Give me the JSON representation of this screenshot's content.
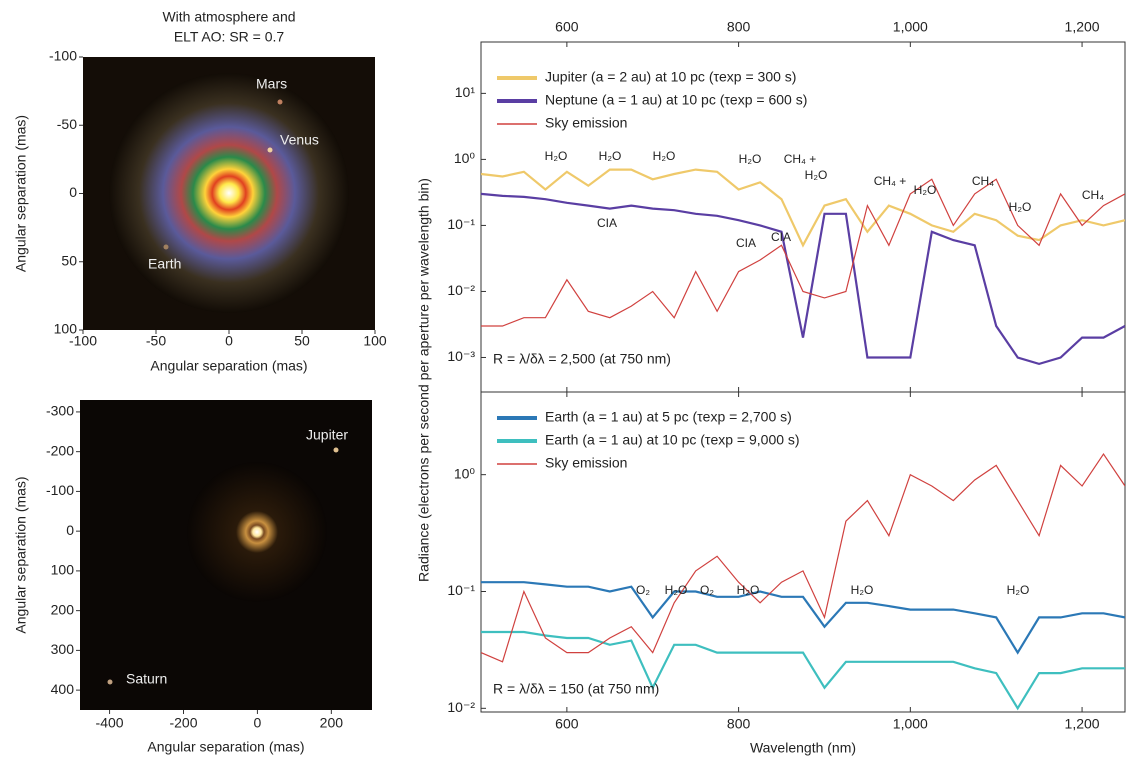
{
  "chart_data": [
    {
      "type": "image",
      "title": [
        "With atmosphere and",
        "ELT AO: SR = 0.7"
      ],
      "xlabel": "Angular separation (mas)",
      "ylabel": "Angular separation (mas)",
      "xlim": [
        -100,
        100
      ],
      "ylim": [
        -100,
        100
      ],
      "y_inverted": true,
      "xticks": [
        -100,
        -50,
        0,
        50,
        100
      ],
      "yticks": [
        -100,
        -50,
        0,
        50,
        100
      ],
      "annotations": [
        "Mars",
        "Venus",
        "Earth"
      ]
    },
    {
      "type": "image",
      "xlabel": "Angular separation (mas)",
      "ylabel": "Angular separation (mas)",
      "xlim": [
        -480,
        310
      ],
      "ylim": [
        -330,
        450
      ],
      "y_inverted": true,
      "xticks": [
        -400,
        -200,
        0,
        200
      ],
      "yticks": [
        -300,
        -200,
        -100,
        0,
        100,
        200,
        300,
        400
      ],
      "annotations": [
        "Jupiter",
        "Saturn"
      ]
    },
    {
      "type": "line",
      "ylabel": "Radiance (electrons per second per aperture per wavelength bin)",
      "log_y": true,
      "xlim": [
        500,
        1250
      ],
      "ylim": [
        0.0003,
        60
      ],
      "xticks": [
        600,
        800,
        {
          "value": 1000,
          "label": "1,000"
        },
        {
          "value": 1200,
          "label": "1,200"
        }
      ],
      "yticks": [
        {
          "value": 0.001,
          "label": "10⁻³"
        },
        {
          "value": 0.01,
          "label": "10⁻²"
        },
        {
          "value": 0.1,
          "label": "10⁻¹"
        },
        {
          "value": 1,
          "label": "10⁰"
        },
        {
          "value": 10,
          "label": "10¹"
        }
      ],
      "x": [
        500,
        525,
        550,
        575,
        600,
        625,
        650,
        675,
        700,
        725,
        750,
        775,
        800,
        825,
        850,
        875,
        900,
        925,
        950,
        975,
        1000,
        1025,
        1050,
        1075,
        1100,
        1125,
        1150,
        1175,
        1200,
        1225,
        1250
      ],
      "series": [
        {
          "name": "Jupiter (a = 2 au) at 10 pc (τexp = 300 s)",
          "color": "#efc96a",
          "values": [
            0.6,
            0.55,
            0.65,
            0.35,
            0.65,
            0.4,
            0.7,
            0.7,
            0.5,
            0.6,
            0.7,
            0.65,
            0.35,
            0.45,
            0.25,
            0.05,
            0.2,
            0.25,
            0.08,
            0.2,
            0.15,
            0.1,
            0.08,
            0.15,
            0.12,
            0.07,
            0.06,
            0.1,
            0.12,
            0.1,
            0.12
          ]
        },
        {
          "name": "Neptune (a = 1 au) at 10 pc (τexp = 600 s)",
          "color": "#5a3ea3",
          "values": [
            0.3,
            0.28,
            0.27,
            0.25,
            0.22,
            0.2,
            0.18,
            0.2,
            0.18,
            0.17,
            0.15,
            0.14,
            0.12,
            0.1,
            0.08,
            0.002,
            0.15,
            0.15,
            0.001,
            0.001,
            0.001,
            0.08,
            0.06,
            0.05,
            0.003,
            0.001,
            0.0008,
            0.001,
            0.002,
            0.002,
            0.003
          ]
        },
        {
          "name": "Sky emission",
          "color": "#d0413f",
          "values": [
            0.003,
            0.003,
            0.004,
            0.004,
            0.015,
            0.005,
            0.004,
            0.006,
            0.01,
            0.004,
            0.02,
            0.005,
            0.02,
            0.03,
            0.05,
            0.01,
            0.008,
            0.01,
            0.2,
            0.05,
            0.3,
            0.5,
            0.1,
            0.3,
            0.5,
            0.1,
            0.05,
            0.3,
            0.1,
            0.2,
            0.3
          ]
        }
      ],
      "annotations": [
        "H₂O",
        "H₂O",
        "H₂O",
        "H₂O",
        "CH₄ +",
        "H₂O",
        "CIA",
        "CIA",
        "CIA",
        "CH₄ +",
        "H₂O",
        "CH₄",
        "H₂O",
        "CH₄"
      ],
      "resolution": "R = λ/δλ = 2,500 (at 750 nm)"
    },
    {
      "type": "line",
      "xlabel": "Wavelength (nm)",
      "log_y": true,
      "xlim": [
        500,
        1250
      ],
      "ylim": [
        0.0093,
        5.1
      ],
      "xticks": [
        600,
        800,
        {
          "value": 1000,
          "label": "1,000"
        },
        {
          "value": 1200,
          "label": "1,200"
        }
      ],
      "yticks": [
        {
          "value": 0.01,
          "label": "10⁻²"
        },
        {
          "value": 0.1,
          "label": "10⁻¹"
        },
        {
          "value": 1,
          "label": "10⁰"
        }
      ],
      "x": [
        500,
        525,
        550,
        575,
        600,
        625,
        650,
        675,
        700,
        725,
        750,
        775,
        800,
        825,
        850,
        875,
        900,
        925,
        950,
        975,
        1000,
        1025,
        1050,
        1075,
        1100,
        1125,
        1150,
        1175,
        1200,
        1225,
        1250
      ],
      "series": [
        {
          "name": "Earth (a = 1 au) at 5 pc (τexp = 2,700 s)",
          "color": "#2b78b6",
          "values": [
            0.12,
            0.12,
            0.12,
            0.115,
            0.11,
            0.11,
            0.1,
            0.11,
            0.06,
            0.1,
            0.1,
            0.09,
            0.09,
            0.1,
            0.09,
            0.09,
            0.05,
            0.08,
            0.08,
            0.075,
            0.07,
            0.07,
            0.07,
            0.065,
            0.06,
            0.03,
            0.06,
            0.06,
            0.065,
            0.065,
            0.06
          ]
        },
        {
          "name": "Earth (a = 1 au) at 10 pc (τexp = 9,000 s)",
          "color": "#3ebfbf",
          "values": [
            0.045,
            0.045,
            0.045,
            0.042,
            0.04,
            0.04,
            0.035,
            0.038,
            0.015,
            0.035,
            0.035,
            0.03,
            0.03,
            0.03,
            0.03,
            0.03,
            0.015,
            0.025,
            0.025,
            0.025,
            0.025,
            0.025,
            0.025,
            0.022,
            0.02,
            0.01,
            0.02,
            0.02,
            0.022,
            0.022,
            0.022
          ]
        },
        {
          "name": "Sky emission",
          "color": "#d0413f",
          "values": [
            0.03,
            0.025,
            0.1,
            0.04,
            0.03,
            0.03,
            0.04,
            0.05,
            0.03,
            0.08,
            0.15,
            0.2,
            0.12,
            0.08,
            0.12,
            0.15,
            0.06,
            0.4,
            0.6,
            0.3,
            1.0,
            0.8,
            0.6,
            0.9,
            1.2,
            0.6,
            0.3,
            1.2,
            0.8,
            1.5,
            0.8
          ]
        }
      ],
      "annotations": [
        "O₂",
        "H₂O",
        "O₂",
        "H₂O",
        "H₂O",
        "H₂O"
      ],
      "resolution": "R = λ/δλ = 150 (at 750 nm)"
    }
  ]
}
